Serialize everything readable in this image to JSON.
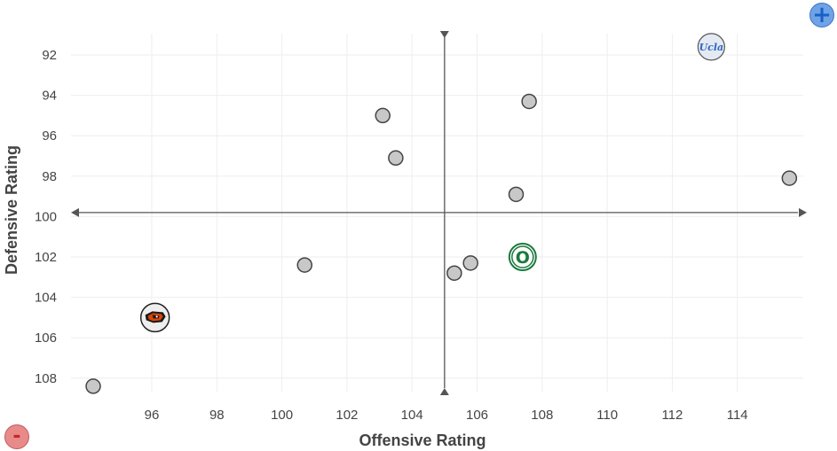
{
  "chart_data": {
    "type": "scatter",
    "xlabel": "Offensive Rating",
    "ylabel": "Defensive Rating",
    "xlim": [
      93.5,
      116
    ],
    "ylim": [
      109,
      91
    ],
    "y_reversed": true,
    "grid": true,
    "x_ticks": [
      96,
      98,
      100,
      102,
      104,
      106,
      108,
      110,
      112,
      114
    ],
    "y_ticks": [
      92,
      94,
      96,
      98,
      100,
      102,
      104,
      106,
      108
    ],
    "quadrant_lines": {
      "x": 105,
      "y": 99.8
    },
    "points": [
      {
        "x": 94.2,
        "y": 108.4
      },
      {
        "x": 96.1,
        "y": 105.0,
        "logo": "beaver-logo"
      },
      {
        "x": 100.7,
        "y": 102.4
      },
      {
        "x": 103.1,
        "y": 95.0
      },
      {
        "x": 103.5,
        "y": 97.1
      },
      {
        "x": 105.3,
        "y": 102.8
      },
      {
        "x": 105.8,
        "y": 102.3
      },
      {
        "x": 107.2,
        "y": 98.9
      },
      {
        "x": 107.4,
        "y": 102.0,
        "logo": "oregon-o-logo",
        "logo_text": "O"
      },
      {
        "x": 107.6,
        "y": 94.3
      },
      {
        "x": 113.2,
        "y": 91.6,
        "logo": "ucla-logo",
        "logo_text": "Ucla"
      },
      {
        "x": 115.6,
        "y": 98.1
      }
    ]
  },
  "controls": {
    "zoom_in_symbol": "+",
    "zoom_out_symbol": "-"
  },
  "colors": {
    "oregon_green": "#1a7a3c",
    "ucla_blue": "#2d68c4",
    "beaver_orange": "#dc4405"
  }
}
